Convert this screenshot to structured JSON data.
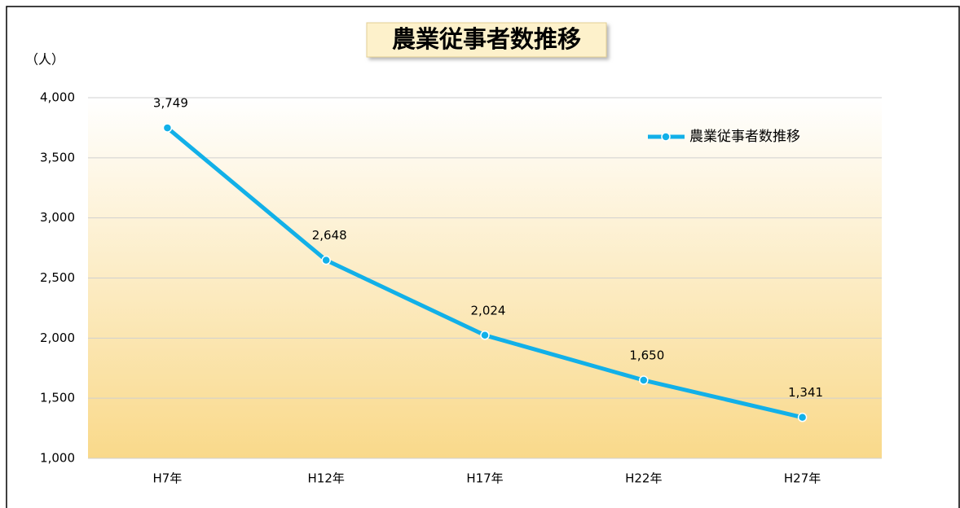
{
  "chart_data": {
    "type": "line",
    "title": "農業従事者数推移",
    "y_label": "（人）",
    "categories": [
      "H7年",
      "H12年",
      "H17年",
      "H22年",
      "H27年"
    ],
    "series": [
      {
        "name": "農業従事者数推移",
        "color": "#12b0e8",
        "values": [
          3749,
          2648,
          2024,
          1650,
          1341
        ],
        "value_labels": [
          "3,749",
          "2,648",
          "2,024",
          "1,650",
          "1,341"
        ]
      }
    ],
    "ylim": [
      1000,
      4000
    ],
    "yticks": [
      {
        "value": 1000,
        "label": "1,000"
      },
      {
        "value": 1500,
        "label": "1,500"
      },
      {
        "value": 2000,
        "label": "2,000"
      },
      {
        "value": 2500,
        "label": "2,500"
      },
      {
        "value": 3000,
        "label": "3,000"
      },
      {
        "value": 3500,
        "label": "3,500"
      },
      {
        "value": 4000,
        "label": "4,000"
      }
    ],
    "grid": true,
    "legend": "upper right"
  }
}
